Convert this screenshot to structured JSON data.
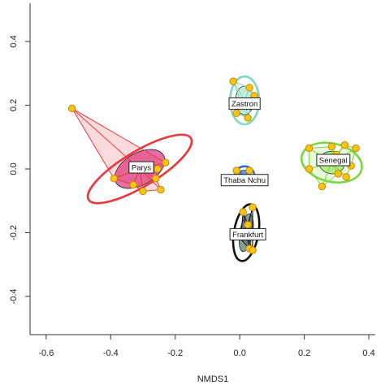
{
  "chart_data": {
    "type": "scatter",
    "xlabel": "NMDS1",
    "ylabel": "",
    "xlim": [
      -0.65,
      0.42
    ],
    "ylim": [
      -0.52,
      0.52
    ],
    "x_ticks": [
      -0.6,
      -0.4,
      -0.2,
      0.0,
      0.2,
      0.4
    ],
    "x_tick_labels": [
      "-0.6",
      "-0.4",
      "-0.2",
      "0.0",
      "0.2",
      "0.4"
    ],
    "y_ticks": [
      -0.4,
      -0.2,
      0.0,
      0.2,
      0.4
    ],
    "y_tick_labels": [
      "-0.4",
      "-0.2",
      "0.0",
      "0.2",
      "0.4"
    ],
    "point_color": "#f5c518",
    "groups": [
      {
        "name": "Parys",
        "color": "#e8383d",
        "fill": "#e0559a",
        "label_pos": [
          -0.305,
          0.005
        ],
        "points": [
          [
            -0.52,
            0.19
          ],
          [
            -0.39,
            -0.03
          ],
          [
            -0.33,
            -0.05
          ],
          [
            -0.3,
            -0.07
          ],
          [
            -0.26,
            -0.03
          ],
          [
            -0.245,
            -0.065
          ],
          [
            -0.23,
            0.02
          ],
          [
            -0.255,
            0.0
          ]
        ],
        "centroid": [
          -0.31,
          0.0
        ],
        "ellipse_outer": {
          "rx": 0.185,
          "ry": 0.055,
          "angle_deg": -31
        },
        "ellipse_inner": {
          "rx": 0.085,
          "ry": 0.05,
          "angle_deg": -30
        }
      },
      {
        "name": "Zastron",
        "color": "#7fd8c1",
        "fill": "#c8efe2",
        "label_pos": [
          0.015,
          0.205
        ],
        "points": [
          [
            -0.02,
            0.275
          ],
          [
            0.03,
            0.255
          ],
          [
            0.005,
            0.205
          ],
          [
            -0.01,
            0.175
          ],
          [
            0.025,
            0.16
          ],
          [
            0.045,
            0.23
          ]
        ],
        "centroid": [
          0.015,
          0.215
        ],
        "ellipse_outer": {
          "rx": 0.045,
          "ry": 0.075,
          "angle_deg": 0
        },
        "ellipse_inner": {
          "rx": 0.028,
          "ry": 0.045,
          "angle_deg": 0
        }
      },
      {
        "name": "Senegal",
        "color": "#7ad83e",
        "fill": "#b6ee86",
        "label_pos": [
          0.29,
          0.028
        ],
        "points": [
          [
            0.215,
            0.065
          ],
          [
            0.285,
            0.07
          ],
          [
            0.325,
            0.075
          ],
          [
            0.36,
            0.065
          ],
          [
            0.215,
            0.0
          ],
          [
            0.255,
            -0.055
          ],
          [
            0.305,
            -0.015
          ],
          [
            0.33,
            -0.025
          ],
          [
            0.3,
            0.045
          ],
          [
            0.345,
            0.01
          ]
        ],
        "centroid": [
          0.285,
          0.02
        ],
        "ellipse_outer": {
          "rx": 0.095,
          "ry": 0.06,
          "angle_deg": 13
        },
        "ellipse_inner": {
          "rx": 0.04,
          "ry": 0.035,
          "angle_deg": 10
        }
      },
      {
        "name": "Thaba Nchu",
        "color": "#2f68c8",
        "fill": "#6a8fd6",
        "label_pos": [
          0.015,
          -0.035
        ],
        "points": [
          [
            -0.01,
            -0.005
          ],
          [
            0.03,
            -0.005
          ],
          [
            0.005,
            -0.03
          ],
          [
            0.04,
            -0.035
          ]
        ],
        "centroid": [
          0.015,
          -0.02
        ],
        "ellipse_outer": {
          "rx": 0.03,
          "ry": 0.028,
          "angle_deg": 0
        },
        "ellipse_inner": {
          "rx": 0.016,
          "ry": 0.016,
          "angle_deg": 0
        }
      },
      {
        "name": "Frankfurt",
        "color": "#111111",
        "fill": "#6e8f8a",
        "label_pos": [
          0.025,
          -0.205
        ],
        "points": [
          [
            0.01,
            -0.135
          ],
          [
            0.04,
            -0.12
          ],
          [
            0.005,
            -0.2
          ],
          [
            0.03,
            -0.25
          ],
          [
            0.04,
            -0.255
          ],
          [
            -0.01,
            -0.205
          ],
          [
            0.025,
            -0.175
          ]
        ],
        "centroid": [
          0.02,
          -0.2
        ],
        "ellipse_outer": {
          "rx": 0.038,
          "ry": 0.09,
          "angle_deg": 10
        },
        "ellipse_inner": {
          "rx": 0.02,
          "ry": 0.06,
          "angle_deg": 10
        }
      }
    ]
  }
}
